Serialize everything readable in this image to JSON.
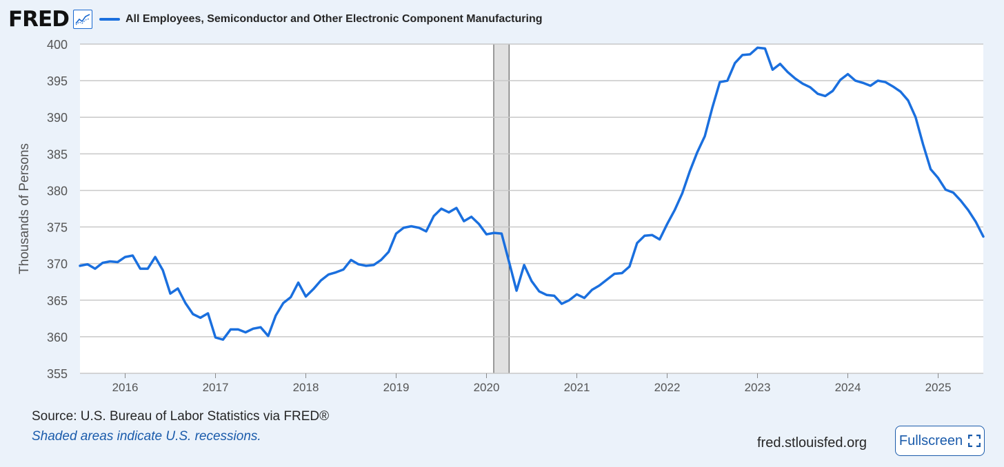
{
  "header": {
    "logo_text": "FRED",
    "legend_label": "All Employees, Semiconductor and Other Electronic Component Manufacturing"
  },
  "footer": {
    "source": "Source: U.S. Bureau of Labor Statistics via FRED®",
    "recession_note": "Shaded areas indicate U.S. recessions.",
    "url": "fred.stlouisfed.org",
    "fullscreen_label": "Fullscreen"
  },
  "colors": {
    "series": "#1a6fde",
    "recession_fill": "#e1e1e1",
    "background": "#ebf2fa",
    "accent": "#1a5bab"
  },
  "chart_data": {
    "type": "line",
    "title": "All Employees, Semiconductor and Other Electronic Component Manufacturing",
    "xlabel": "",
    "ylabel": "Thousands of Persons",
    "ylim": [
      355,
      400
    ],
    "yticks": [
      355,
      360,
      365,
      370,
      375,
      380,
      385,
      390,
      395,
      400
    ],
    "xlim": [
      2015.5,
      2025.5
    ],
    "xticks": [
      2016,
      2017,
      2018,
      2019,
      2020,
      2021,
      2022,
      2023,
      2024,
      2025
    ],
    "grid": true,
    "legend": "top-left",
    "recessions": [
      [
        2020.08,
        2020.25
      ]
    ],
    "series": [
      {
        "name": "All Employees, Semiconductor and Other Electronic Component Manufacturing",
        "x": [
          2015.5,
          2015.583,
          2015.667,
          2015.75,
          2015.833,
          2015.917,
          2016,
          2016.083,
          2016.167,
          2016.25,
          2016.333,
          2016.417,
          2016.5,
          2016.583,
          2016.667,
          2016.75,
          2016.833,
          2016.917,
          2017,
          2017.083,
          2017.167,
          2017.25,
          2017.333,
          2017.417,
          2017.5,
          2017.583,
          2017.667,
          2017.75,
          2017.833,
          2017.917,
          2018,
          2018.083,
          2018.167,
          2018.25,
          2018.333,
          2018.417,
          2018.5,
          2018.583,
          2018.667,
          2018.75,
          2018.833,
          2018.917,
          2019,
          2019.083,
          2019.167,
          2019.25,
          2019.333,
          2019.417,
          2019.5,
          2019.583,
          2019.667,
          2019.75,
          2019.833,
          2019.917,
          2020,
          2020.083,
          2020.167,
          2020.25,
          2020.333,
          2020.417,
          2020.5,
          2020.583,
          2020.667,
          2020.75,
          2020.833,
          2020.917,
          2021,
          2021.083,
          2021.167,
          2021.25,
          2021.333,
          2021.417,
          2021.5,
          2021.583,
          2021.667,
          2021.75,
          2021.833,
          2021.917,
          2022,
          2022.083,
          2022.167,
          2022.25,
          2022.333,
          2022.417,
          2022.5,
          2022.583,
          2022.667,
          2022.75,
          2022.833,
          2022.917,
          2023,
          2023.083,
          2023.167,
          2023.25,
          2023.333,
          2023.417,
          2023.5,
          2023.583,
          2023.667,
          2023.75,
          2023.833,
          2023.917,
          2024,
          2024.083,
          2024.167,
          2024.25,
          2024.333,
          2024.417,
          2024.5,
          2024.583,
          2024.667,
          2024.75,
          2024.833,
          2024.917,
          2025,
          2025.083,
          2025.167,
          2025.25,
          2025.333,
          2025.417,
          2025.5
        ],
        "values": [
          369.7,
          369.9,
          369.3,
          370.1,
          370.3,
          370.2,
          370.9,
          371.1,
          369.3,
          369.3,
          370.9,
          369.1,
          365.9,
          366.6,
          364.6,
          363.1,
          362.6,
          363.2,
          359.9,
          359.6,
          361.0,
          361.0,
          360.6,
          361.1,
          361.3,
          360.1,
          362.9,
          364.6,
          365.4,
          367.4,
          365.5,
          366.5,
          367.7,
          368.5,
          368.8,
          369.2,
          370.5,
          369.9,
          369.7,
          369.8,
          370.5,
          371.6,
          374.1,
          374.9,
          375.1,
          374.9,
          374.4,
          376.5,
          377.5,
          377.0,
          377.6,
          375.8,
          376.4,
          375.4,
          374.0,
          374.2,
          374.1,
          370.2,
          366.3,
          369.8,
          367.6,
          366.2,
          365.7,
          365.6,
          364.5,
          365.0,
          365.8,
          365.3,
          366.4,
          367.0,
          367.8,
          368.6,
          368.7,
          369.6,
          372.8,
          373.8,
          373.9,
          373.3,
          375.4,
          377.3,
          379.6,
          382.6,
          385.2,
          387.4,
          391.3,
          394.8,
          395.0,
          397.4,
          398.5,
          398.6,
          399.5,
          399.4,
          396.5,
          397.3,
          396.2,
          395.3,
          394.6,
          394.1,
          393.2,
          392.9,
          393.6,
          395.1,
          395.9,
          395.0,
          394.7,
          394.3,
          395.0,
          394.8,
          394.2,
          393.5,
          392.3,
          390.0,
          386.3,
          382.9,
          381.7,
          380.1,
          379.7,
          378.6,
          377.3,
          375.7,
          373.7
        ]
      }
    ]
  }
}
